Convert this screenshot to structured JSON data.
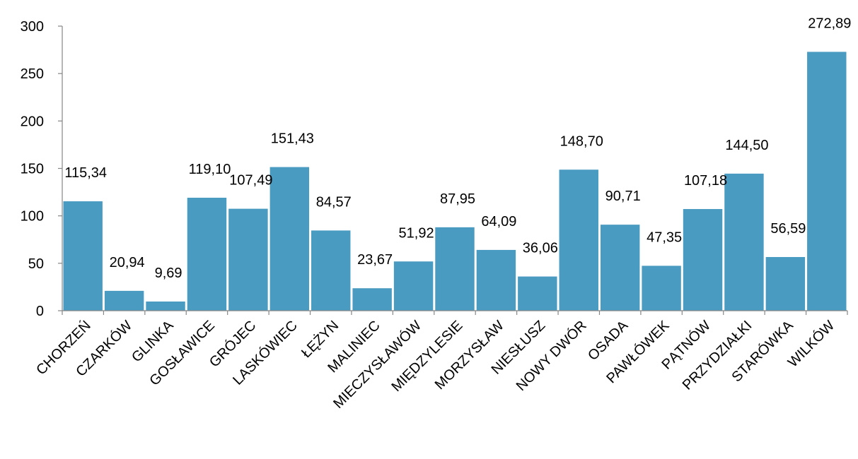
{
  "chart_data": {
    "type": "bar",
    "categories": [
      "CHORZEŃ",
      "CZARKÓW",
      "GLINKA",
      "GOSŁAWICE",
      "GRÓJEC",
      "LASKÓWIEC",
      "ŁĘŻYN",
      "MALINIEC",
      "MIECZYSŁAWÓW",
      "MIĘDZYLESIE",
      "MORZYSŁAW",
      "NIESŁUSZ",
      "NOWY DWÓR",
      "OSADA",
      "PAWŁÓWEK",
      "PĄTNÓW",
      "PRZYDZIAŁKI",
      "STARÓWKA",
      "WILKÓW"
    ],
    "values": [
      115.34,
      20.94,
      9.69,
      119.1,
      107.49,
      151.43,
      84.57,
      23.67,
      51.92,
      87.95,
      64.09,
      36.06,
      148.7,
      90.71,
      47.35,
      107.18,
      144.5,
      56.59,
      272.89
    ],
    "value_labels": [
      "115,34",
      "20,94",
      "9,69",
      "119,10",
      "107,49",
      "151,43",
      "84,57",
      "23,67",
      "51,92",
      "87,95",
      "64,09",
      "36,06",
      "148,70",
      "90,71",
      "47,35",
      "107,18",
      "144,50",
      "56,59",
      "272,89"
    ],
    "yticks": [
      "0",
      "50",
      "100",
      "150",
      "200",
      "250",
      "300"
    ],
    "ylim": [
      0,
      300
    ],
    "bar_color": "#4a9bc1",
    "axis_color": "#868686",
    "grid": false,
    "legend": false
  }
}
